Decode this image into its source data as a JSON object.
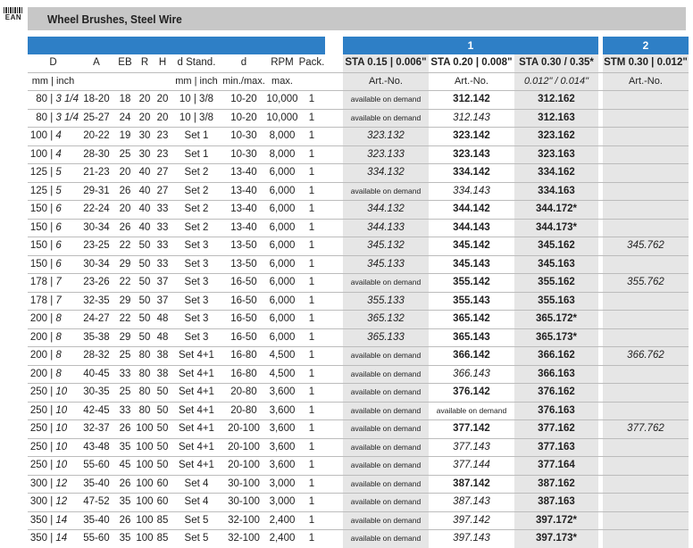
{
  "header": {
    "ean_label": "EAN",
    "title": "Wheel Brushes, Steel Wire"
  },
  "table": {
    "group_labels": [
      "1",
      "2"
    ],
    "columns_top": {
      "D": "D",
      "A": "A",
      "EB": "EB",
      "R": "R",
      "H": "H",
      "dstand": "d Stand.",
      "d": "d",
      "rpm": "RPM",
      "pack": "Pack.",
      "sta015": "STA 0.15 | 0.006\"",
      "sta020": "STA 0.20 | 0.008\"",
      "sta030": "STA 0.30 / 0.35*",
      "stm030": "STM 0.30 | 0.012\""
    },
    "columns_sub": {
      "D": "mm | inch",
      "dstand": "mm | inch",
      "d": "min./max.",
      "rpm": "max.",
      "sta015": "Art.-No.",
      "sta020": "Art.-No.",
      "sta030": "0.012\" / 0.014\"",
      "stm030": "Art.-No."
    },
    "rows": [
      {
        "d_mm": "80",
        "d_inch": "3 1/4",
        "a": "18-20",
        "eb": "18",
        "r": "20",
        "h": "20",
        "dstand": "10 | 3/8",
        "d": "10-20",
        "rpm": "10,000",
        "pack": "1",
        "sta015": "available on demand",
        "sta020": "312.142",
        "sta030": "312.162",
        "stm030": ""
      },
      {
        "d_mm": "80",
        "d_inch": "3 1/4",
        "a": "25-27",
        "eb": "24",
        "r": "20",
        "h": "20",
        "dstand": "10 | 3/8",
        "d": "10-20",
        "rpm": "10,000",
        "pack": "1",
        "sta015": "available on demand",
        "sta020": "312.143",
        "sta030": "312.163",
        "stm030": ""
      },
      {
        "d_mm": "100",
        "d_inch": "4",
        "a": "20-22",
        "eb": "19",
        "r": "30",
        "h": "23",
        "dstand": "Set 1",
        "d": "10-30",
        "rpm": "8,000",
        "pack": "1",
        "sta015": "323.132",
        "sta020": "323.142",
        "sta030": "323.162",
        "stm030": ""
      },
      {
        "d_mm": "100",
        "d_inch": "4",
        "a": "28-30",
        "eb": "25",
        "r": "30",
        "h": "23",
        "dstand": "Set 1",
        "d": "10-30",
        "rpm": "8,000",
        "pack": "1",
        "sta015": "323.133",
        "sta020": "323.143",
        "sta030": "323.163",
        "stm030": ""
      },
      {
        "d_mm": "125",
        "d_inch": "5",
        "a": "21-23",
        "eb": "20",
        "r": "40",
        "h": "27",
        "dstand": "Set 2",
        "d": "13-40",
        "rpm": "6,000",
        "pack": "1",
        "sta015": "334.132",
        "sta020": "334.142",
        "sta030": "334.162",
        "stm030": ""
      },
      {
        "d_mm": "125",
        "d_inch": "5",
        "a": "29-31",
        "eb": "26",
        "r": "40",
        "h": "27",
        "dstand": "Set 2",
        "d": "13-40",
        "rpm": "6,000",
        "pack": "1",
        "sta015": "available on demand",
        "sta020": "334.143",
        "sta030": "334.163",
        "stm030": ""
      },
      {
        "d_mm": "150",
        "d_inch": "6",
        "a": "22-24",
        "eb": "20",
        "r": "40",
        "h": "33",
        "dstand": "Set 2",
        "d": "13-40",
        "rpm": "6,000",
        "pack": "1",
        "sta015": "344.132",
        "sta020": "344.142",
        "sta030": "344.172*",
        "stm030": ""
      },
      {
        "d_mm": "150",
        "d_inch": "6",
        "a": "30-34",
        "eb": "26",
        "r": "40",
        "h": "33",
        "dstand": "Set 2",
        "d": "13-40",
        "rpm": "6,000",
        "pack": "1",
        "sta015": "344.133",
        "sta020": "344.143",
        "sta030": "344.173*",
        "stm030": ""
      },
      {
        "d_mm": "150",
        "d_inch": "6",
        "a": "23-25",
        "eb": "22",
        "r": "50",
        "h": "33",
        "dstand": "Set 3",
        "d": "13-50",
        "rpm": "6,000",
        "pack": "1",
        "sta015": "345.132",
        "sta020": "345.142",
        "sta030": "345.162",
        "stm030": "345.762"
      },
      {
        "d_mm": "150",
        "d_inch": "6",
        "a": "30-34",
        "eb": "29",
        "r": "50",
        "h": "33",
        "dstand": "Set 3",
        "d": "13-50",
        "rpm": "6,000",
        "pack": "1",
        "sta015": "345.133",
        "sta020": "345.143",
        "sta030": "345.163",
        "stm030": ""
      },
      {
        "d_mm": "178",
        "d_inch": "7",
        "a": "23-26",
        "eb": "22",
        "r": "50",
        "h": "37",
        "dstand": "Set 3",
        "d": "16-50",
        "rpm": "6,000",
        "pack": "1",
        "sta015": "available on demand",
        "sta020": "355.142",
        "sta030": "355.162",
        "stm030": "355.762"
      },
      {
        "d_mm": "178",
        "d_inch": "7",
        "a": "32-35",
        "eb": "29",
        "r": "50",
        "h": "37",
        "dstand": "Set 3",
        "d": "16-50",
        "rpm": "6,000",
        "pack": "1",
        "sta015": "355.133",
        "sta020": "355.143",
        "sta030": "355.163",
        "stm030": ""
      },
      {
        "d_mm": "200",
        "d_inch": "8",
        "a": "24-27",
        "eb": "22",
        "r": "50",
        "h": "48",
        "dstand": "Set 3",
        "d": "16-50",
        "rpm": "6,000",
        "pack": "1",
        "sta015": "365.132",
        "sta020": "365.142",
        "sta030": "365.172*",
        "stm030": ""
      },
      {
        "d_mm": "200",
        "d_inch": "8",
        "a": "35-38",
        "eb": "29",
        "r": "50",
        "h": "48",
        "dstand": "Set 3",
        "d": "16-50",
        "rpm": "6,000",
        "pack": "1",
        "sta015": "365.133",
        "sta020": "365.143",
        "sta030": "365.173*",
        "stm030": ""
      },
      {
        "d_mm": "200",
        "d_inch": "8",
        "a": "28-32",
        "eb": "25",
        "r": "80",
        "h": "38",
        "dstand": "Set 4+1",
        "d": "16-80",
        "rpm": "4,500",
        "pack": "1",
        "sta015": "available on demand",
        "sta020": "366.142",
        "sta030": "366.162",
        "stm030": "366.762"
      },
      {
        "d_mm": "200",
        "d_inch": "8",
        "a": "40-45",
        "eb": "33",
        "r": "80",
        "h": "38",
        "dstand": "Set 4+1",
        "d": "16-80",
        "rpm": "4,500",
        "pack": "1",
        "sta015": "available on demand",
        "sta020": "366.143",
        "sta030": "366.163",
        "stm030": ""
      },
      {
        "d_mm": "250",
        "d_inch": "10",
        "a": "30-35",
        "eb": "25",
        "r": "80",
        "h": "50",
        "dstand": "Set 4+1",
        "d": "20-80",
        "rpm": "3,600",
        "pack": "1",
        "sta015": "available on demand",
        "sta020": "376.142",
        "sta030": "376.162",
        "stm030": ""
      },
      {
        "d_mm": "250",
        "d_inch": "10",
        "a": "42-45",
        "eb": "33",
        "r": "80",
        "h": "50",
        "dstand": "Set 4+1",
        "d": "20-80",
        "rpm": "3,600",
        "pack": "1",
        "sta015": "available on demand",
        "sta020": "available on demand",
        "sta030": "376.163",
        "stm030": ""
      },
      {
        "d_mm": "250",
        "d_inch": "10",
        "a": "32-37",
        "eb": "26",
        "r": "100",
        "h": "50",
        "dstand": "Set 4+1",
        "d": "20-100",
        "rpm": "3,600",
        "pack": "1",
        "sta015": "available on demand",
        "sta020": "377.142",
        "sta030": "377.162",
        "stm030": "377.762"
      },
      {
        "d_mm": "250",
        "d_inch": "10",
        "a": "43-48",
        "eb": "35",
        "r": "100",
        "h": "50",
        "dstand": "Set 4+1",
        "d": "20-100",
        "rpm": "3,600",
        "pack": "1",
        "sta015": "available on demand",
        "sta020": "377.143",
        "sta030": "377.163",
        "stm030": ""
      },
      {
        "d_mm": "250",
        "d_inch": "10",
        "a": "55-60",
        "eb": "45",
        "r": "100",
        "h": "50",
        "dstand": "Set 4+1",
        "d": "20-100",
        "rpm": "3,600",
        "pack": "1",
        "sta015": "available on demand",
        "sta020": "377.144",
        "sta030": "377.164",
        "stm030": ""
      },
      {
        "d_mm": "300",
        "d_inch": "12",
        "a": "35-40",
        "eb": "26",
        "r": "100",
        "h": "60",
        "dstand": "Set 4",
        "d": "30-100",
        "rpm": "3,000",
        "pack": "1",
        "sta015": "available on demand",
        "sta020": "387.142",
        "sta030": "387.162",
        "stm030": ""
      },
      {
        "d_mm": "300",
        "d_inch": "12",
        "a": "47-52",
        "eb": "35",
        "r": "100",
        "h": "60",
        "dstand": "Set 4",
        "d": "30-100",
        "rpm": "3,000",
        "pack": "1",
        "sta015": "available on demand",
        "sta020": "387.143",
        "sta030": "387.163",
        "stm030": ""
      },
      {
        "d_mm": "350",
        "d_inch": "14",
        "a": "35-40",
        "eb": "26",
        "r": "100",
        "h": "85",
        "dstand": "Set 5",
        "d": "32-100",
        "rpm": "2,400",
        "pack": "1",
        "sta015": "available on demand",
        "sta020": "397.142",
        "sta030": "397.172*",
        "stm030": ""
      },
      {
        "d_mm": "350",
        "d_inch": "14",
        "a": "55-60",
        "eb": "35",
        "r": "100",
        "h": "85",
        "dstand": "Set 5",
        "d": "32-100",
        "rpm": "2,400",
        "pack": "1",
        "sta015": "available on demand",
        "sta020": "397.143",
        "sta030": "397.173*",
        "stm030": ""
      }
    ]
  }
}
